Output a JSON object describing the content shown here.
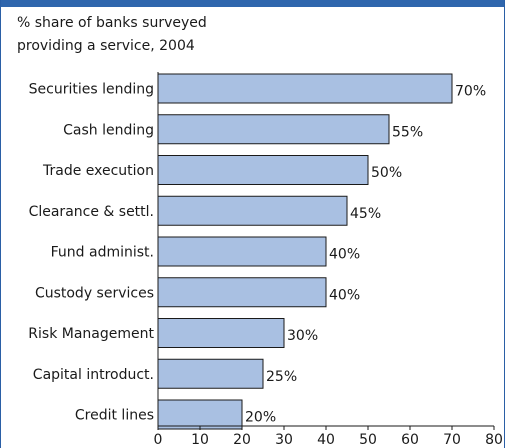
{
  "subtitle_lines": [
    "% share of banks surveyed",
    "providing a service, 2004"
  ],
  "colors": {
    "bar_fill": "#a9c0e2",
    "bar_stroke": "#1a1a1a",
    "band": "#2f66ad"
  },
  "chart_data": {
    "type": "bar",
    "orientation": "horizontal",
    "categories": [
      "Securities lending",
      "Cash lending",
      "Trade execution",
      "Clearance & settl.",
      "Fund administ.",
      "Custody services",
      "Risk Management",
      "Capital introduct.",
      "Credit lines"
    ],
    "values": [
      70,
      55,
      50,
      45,
      40,
      40,
      30,
      25,
      20
    ],
    "value_labels": [
      "70%",
      "55%",
      "50%",
      "45%",
      "40%",
      "40%",
      "30%",
      "25%",
      "20%"
    ],
    "xlim": [
      0,
      80
    ],
    "xticks": [
      "0",
      "10",
      "20",
      "30",
      "40",
      "50",
      "60",
      "70",
      "80"
    ],
    "grid": false,
    "legend": "none"
  }
}
